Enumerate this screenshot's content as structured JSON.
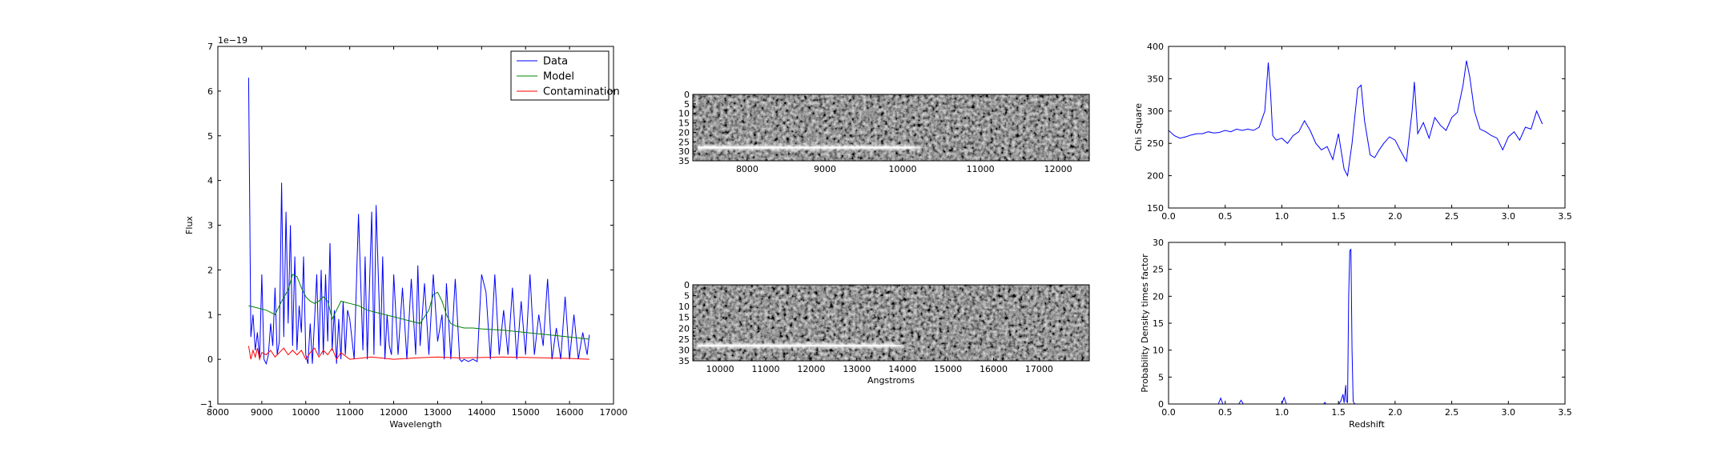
{
  "chart_data": [
    {
      "id": "spectrum",
      "type": "line",
      "xlabel": "Wavelength",
      "ylabel": "Flux",
      "offset_label": "1e−19",
      "xlim": [
        8000,
        17000
      ],
      "ylim": [
        -1,
        7
      ],
      "xticks": [
        8000,
        9000,
        10000,
        11000,
        12000,
        13000,
        14000,
        15000,
        16000,
        17000
      ],
      "yticks": [
        -1,
        0,
        1,
        2,
        3,
        4,
        5,
        6,
        7
      ],
      "grid": false,
      "legend": {
        "placement": "top-right",
        "entries": [
          "Data",
          "Model",
          "Contamination"
        ]
      },
      "series": [
        {
          "name": "Data",
          "color": "#0000ff",
          "x": [
            8700,
            8750,
            8800,
            8850,
            8900,
            8950,
            9000,
            9050,
            9100,
            9150,
            9200,
            9250,
            9300,
            9350,
            9400,
            9450,
            9500,
            9550,
            9600,
            9650,
            9700,
            9750,
            9800,
            9850,
            9900,
            9950,
            10000,
            10050,
            10100,
            10150,
            10200,
            10250,
            10300,
            10350,
            10400,
            10450,
            10500,
            10550,
            10600,
            10650,
            10700,
            10750,
            10800,
            10850,
            10900,
            10950,
            11000,
            11100,
            11200,
            11300,
            11350,
            11400,
            11500,
            11550,
            11600,
            11700,
            11750,
            11800,
            11850,
            11900,
            11950,
            12000,
            12100,
            12200,
            12300,
            12400,
            12500,
            12550,
            12600,
            12700,
            12800,
            12900,
            13000,
            13100,
            13150,
            13200,
            13300,
            13400,
            13500,
            13550,
            13600,
            13700,
            13800,
            13900,
            14000,
            14100,
            14200,
            14300,
            14400,
            14500,
            14600,
            14700,
            14800,
            14900,
            15000,
            15100,
            15200,
            15300,
            15400,
            15500,
            15600,
            15700,
            15800,
            15900,
            16000,
            16100,
            16200,
            16300,
            16400,
            16450
          ],
          "y": [
            6.3,
            0.5,
            1.0,
            0.2,
            0.6,
            0.0,
            1.9,
            0.0,
            -0.1,
            0.1,
            0.8,
            0.3,
            1.6,
            0.1,
            0.4,
            3.95,
            0.5,
            3.3,
            0.8,
            3.0,
            0.3,
            2.3,
            0.2,
            1.2,
            0.6,
            2.3,
            0.1,
            -0.1,
            0.8,
            -0.1,
            0.9,
            1.9,
            0.1,
            2.0,
            0.1,
            1.9,
            0.4,
            2.6,
            0.2,
            1.1,
            -0.1,
            0.9,
            0.0,
            1.3,
            0.1,
            1.1,
            0.9,
            0.0,
            3.25,
            0.2,
            2.3,
            0.0,
            3.3,
            0.1,
            3.45,
            0.3,
            2.3,
            0.0,
            1.0,
            0.3,
            0.1,
            1.9,
            0.1,
            1.6,
            0.0,
            1.8,
            0.1,
            2.1,
            0.3,
            1.7,
            0.1,
            1.9,
            0.4,
            1.0,
            0.0,
            1.7,
            0.0,
            1.8,
            0.0,
            -0.05,
            0.0,
            -0.05,
            0.0,
            -0.05,
            1.9,
            1.5,
            0.0,
            1.9,
            0.1,
            1.1,
            0.1,
            1.6,
            0.0,
            1.3,
            0.1,
            1.9,
            0.1,
            1.0,
            0.3,
            1.8,
            0.0,
            0.7,
            0.0,
            1.4,
            0.0,
            1.0,
            0.0,
            0.6,
            0.1,
            0.55
          ]
        },
        {
          "name": "Model",
          "color": "#008000",
          "x": [
            8700,
            8900,
            9100,
            9300,
            9450,
            9600,
            9700,
            9800,
            9900,
            10000,
            10100,
            10200,
            10300,
            10400,
            10500,
            10600,
            10700,
            10800,
            11000,
            11200,
            11400,
            11600,
            11800,
            12000,
            12200,
            12400,
            12600,
            12800,
            12900,
            13000,
            13100,
            13200,
            13300,
            13400,
            13600,
            13800,
            14000,
            14500,
            15000,
            15500,
            16000,
            16450
          ],
          "y": [
            1.2,
            1.15,
            1.1,
            1.0,
            1.3,
            1.55,
            1.9,
            1.85,
            1.6,
            1.4,
            1.3,
            1.25,
            1.3,
            1.4,
            1.3,
            0.9,
            1.1,
            1.3,
            1.25,
            1.2,
            1.1,
            1.05,
            1.0,
            0.95,
            0.9,
            0.85,
            0.8,
            1.1,
            1.45,
            1.5,
            1.3,
            1.0,
            0.8,
            0.75,
            0.7,
            0.7,
            0.68,
            0.65,
            0.6,
            0.55,
            0.5,
            0.45
          ]
        },
        {
          "name": "Contamination",
          "color": "#ff0000",
          "x": [
            8700,
            8750,
            8800,
            8850,
            8900,
            8950,
            9000,
            9100,
            9200,
            9300,
            9400,
            9500,
            9600,
            9700,
            9800,
            9900,
            10000,
            10100,
            10200,
            10300,
            10400,
            10500,
            10600,
            10700,
            10800,
            11000,
            11500,
            12000,
            12500,
            13000,
            13500,
            14000,
            14500,
            15000,
            15500,
            16000,
            16450
          ],
          "y": [
            0.3,
            0.0,
            0.2,
            0.05,
            0.25,
            0.0,
            0.15,
            0.1,
            0.2,
            0.05,
            0.15,
            0.25,
            0.1,
            0.2,
            0.1,
            0.2,
            0.0,
            0.15,
            0.25,
            0.05,
            0.2,
            0.1,
            0.25,
            0.0,
            0.15,
            0.0,
            0.05,
            0.0,
            0.03,
            0.05,
            0.03,
            0.04,
            0.05,
            0.04,
            0.03,
            0.02,
            0.0
          ]
        }
      ]
    },
    {
      "id": "image-top",
      "type": "heatmap",
      "xlabel": "",
      "ylabel": "",
      "xlim": [
        7300,
        12400
      ],
      "ylim": [
        0,
        35
      ],
      "xticks": [
        8000,
        9000,
        10000,
        11000,
        12000
      ],
      "yticks": [
        0,
        5,
        10,
        15,
        20,
        25,
        30,
        35
      ],
      "trace": {
        "row": 28,
        "x_start": 7300,
        "x_end": 10100,
        "fade_end": 10300
      }
    },
    {
      "id": "image-bottom",
      "type": "heatmap",
      "xlabel": "Angstroms",
      "ylabel": "",
      "xlim": [
        9400,
        18100
      ],
      "ylim": [
        0,
        35
      ],
      "xticks": [
        10000,
        11000,
        12000,
        13000,
        14000,
        15000,
        16000,
        17000
      ],
      "yticks": [
        0,
        5,
        10,
        15,
        20,
        25,
        30,
        35
      ],
      "trace": {
        "row": 28,
        "x_start": 9400,
        "x_end": 13800,
        "fade_end": 14100
      }
    },
    {
      "id": "chisq",
      "type": "line",
      "xlabel": "",
      "ylabel": "Chi Square",
      "xlim": [
        0.0,
        3.5
      ],
      "ylim": [
        150,
        400
      ],
      "xticks": [
        0.0,
        0.5,
        1.0,
        1.5,
        2.0,
        2.5,
        3.0,
        3.5
      ],
      "yticks": [
        150,
        200,
        250,
        300,
        350,
        400
      ],
      "series": [
        {
          "color": "#0000ff",
          "x": [
            0.0,
            0.05,
            0.1,
            0.15,
            0.2,
            0.25,
            0.3,
            0.35,
            0.4,
            0.45,
            0.5,
            0.55,
            0.6,
            0.65,
            0.7,
            0.75,
            0.8,
            0.85,
            0.88,
            0.9,
            0.92,
            0.95,
            1.0,
            1.05,
            1.1,
            1.15,
            1.2,
            1.25,
            1.3,
            1.35,
            1.4,
            1.45,
            1.5,
            1.55,
            1.58,
            1.62,
            1.67,
            1.7,
            1.73,
            1.78,
            1.82,
            1.86,
            1.9,
            1.95,
            2.0,
            2.05,
            2.1,
            2.15,
            2.17,
            2.2,
            2.25,
            2.3,
            2.35,
            2.4,
            2.45,
            2.5,
            2.55,
            2.6,
            2.63,
            2.66,
            2.7,
            2.75,
            2.8,
            2.85,
            2.9,
            2.95,
            3.0,
            3.05,
            3.1,
            3.15,
            3.2,
            3.25,
            3.3
          ],
          "y": [
            270,
            262,
            258,
            260,
            263,
            265,
            265,
            268,
            266,
            267,
            270,
            268,
            272,
            270,
            272,
            270,
            275,
            300,
            375,
            330,
            262,
            255,
            258,
            250,
            262,
            268,
            285,
            270,
            250,
            240,
            245,
            225,
            265,
            210,
            200,
            250,
            335,
            340,
            285,
            232,
            228,
            240,
            250,
            260,
            255,
            238,
            222,
            300,
            345,
            265,
            282,
            258,
            290,
            278,
            270,
            290,
            298,
            340,
            378,
            352,
            300,
            272,
            268,
            262,
            258,
            240,
            260,
            268,
            255,
            275,
            272,
            300,
            280
          ]
        }
      ]
    },
    {
      "id": "pdf",
      "type": "line",
      "xlabel": "Redshift",
      "ylabel": "Probability Density times factor",
      "xlim": [
        0.0,
        3.5
      ],
      "ylim": [
        0,
        30
      ],
      "xticks": [
        0.0,
        0.5,
        1.0,
        1.5,
        2.0,
        2.5,
        3.0,
        3.5
      ],
      "yticks": [
        0,
        5,
        10,
        15,
        20,
        25,
        30
      ],
      "series": [
        {
          "color": "#0000ff",
          "x": [
            0.0,
            0.44,
            0.46,
            0.48,
            0.62,
            0.64,
            0.66,
            1.0,
            1.02,
            1.04,
            1.37,
            1.38,
            1.39,
            1.5,
            1.52,
            1.54,
            1.55,
            1.56,
            1.565,
            1.57,
            1.58,
            1.59,
            1.6,
            1.61,
            1.62,
            1.63,
            1.64,
            1.65,
            3.3
          ],
          "y": [
            0,
            0,
            1.1,
            0,
            0,
            0.7,
            0,
            0,
            1.2,
            0,
            0,
            0.3,
            0,
            0,
            0.5,
            1.8,
            0.2,
            2.5,
            3.5,
            0.5,
            0.3,
            20,
            28.5,
            28.7,
            10,
            0.5,
            0.1,
            0,
            0
          ]
        }
      ]
    }
  ]
}
